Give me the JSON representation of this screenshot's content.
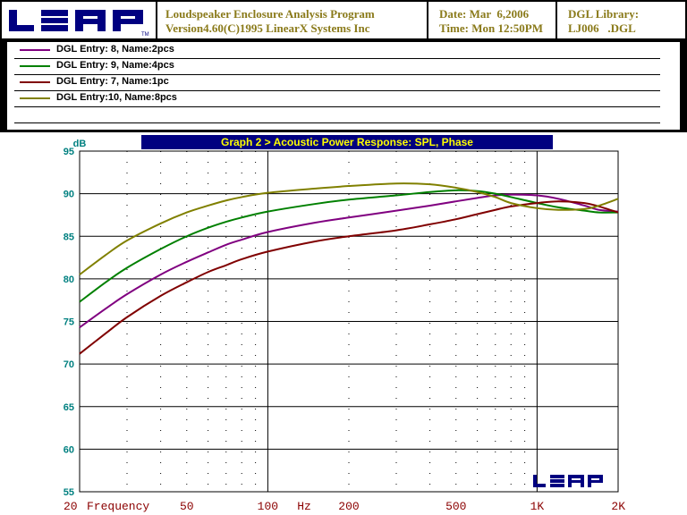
{
  "header": {
    "program_line1": "Loudspeaker Enclosure Analysis Program",
    "program_line2": "Version4.60(C)1995 LinearX Systems Inc",
    "date": "Date: Mar  6,2006",
    "time": "Time: Mon 12:50PM",
    "library_label": "DGL Library:",
    "library_file": "LJ006   .DGL",
    "logo_text": "LEAP",
    "logo_tm": "TM"
  },
  "legend": [
    {
      "label": "DGL Entry: 8, Name:2pcs",
      "color": "#800080"
    },
    {
      "label": "DGL Entry: 9, Name:4pcs",
      "color": "#008000"
    },
    {
      "label": "DGL Entry: 7, Name:1pc",
      "color": "#800000"
    },
    {
      "label": "DGL Entry:10, Name:8pcs",
      "color": "#808000"
    }
  ],
  "chart_data": {
    "type": "line",
    "title": "Graph 2 > Acoustic Power Response: SPL, Phase",
    "ylabel": "dB",
    "xlabel": "Frequency",
    "x_unit": "Hz",
    "x_scale": "log",
    "xlim": [
      20,
      2000
    ],
    "ylim": [
      55,
      95
    ],
    "y_ticks": [
      95,
      90,
      85,
      80,
      75,
      70,
      65,
      60,
      55
    ],
    "x_tick_labels": [
      {
        "value": 20,
        "label": "20"
      },
      {
        "value": 50,
        "label": "50"
      },
      {
        "value": 100,
        "label": "100"
      },
      {
        "value": 200,
        "label": "200"
      },
      {
        "value": 500,
        "label": "500"
      },
      {
        "value": 1000,
        "label": "1K"
      },
      {
        "value": 2000,
        "label": "2K"
      }
    ],
    "grid": true,
    "x": [
      20,
      25,
      30,
      40,
      50,
      60,
      70,
      80,
      100,
      150,
      200,
      300,
      400,
      500,
      600,
      700,
      800,
      1000,
      1200,
      1500,
      1700,
      2000
    ],
    "series": [
      {
        "name": "DGL Entry: 8, Name:2pcs",
        "color": "#800080",
        "values": [
          74.3,
          76.5,
          78.2,
          80.5,
          82.0,
          83.1,
          84.0,
          84.6,
          85.5,
          86.6,
          87.2,
          88.0,
          88.6,
          89.1,
          89.5,
          89.8,
          89.9,
          89.8,
          89.4,
          88.6,
          88.1,
          87.9
        ]
      },
      {
        "name": "DGL Entry: 9, Name:4pcs",
        "color": "#008000",
        "values": [
          77.3,
          79.6,
          81.3,
          83.5,
          85.0,
          86.0,
          86.7,
          87.2,
          87.9,
          88.8,
          89.3,
          89.8,
          90.2,
          90.4,
          90.3,
          90.0,
          89.6,
          88.9,
          88.4,
          88.0,
          87.8,
          87.8
        ]
      },
      {
        "name": "DGL Entry: 7, Name:1pc",
        "color": "#800000",
        "values": [
          71.2,
          73.6,
          75.5,
          78.0,
          79.6,
          80.8,
          81.6,
          82.3,
          83.2,
          84.4,
          85.0,
          85.7,
          86.4,
          87.0,
          87.6,
          88.1,
          88.5,
          88.9,
          89.1,
          88.9,
          88.5,
          87.8
        ]
      },
      {
        "name": "DGL Entry:10, Name:8pcs",
        "color": "#808000",
        "values": [
          80.5,
          82.8,
          84.5,
          86.5,
          87.8,
          88.6,
          89.2,
          89.6,
          90.1,
          90.6,
          90.9,
          91.2,
          91.1,
          90.7,
          90.2,
          89.6,
          88.9,
          88.3,
          88.1,
          88.2,
          88.6,
          89.4
        ]
      }
    ]
  }
}
